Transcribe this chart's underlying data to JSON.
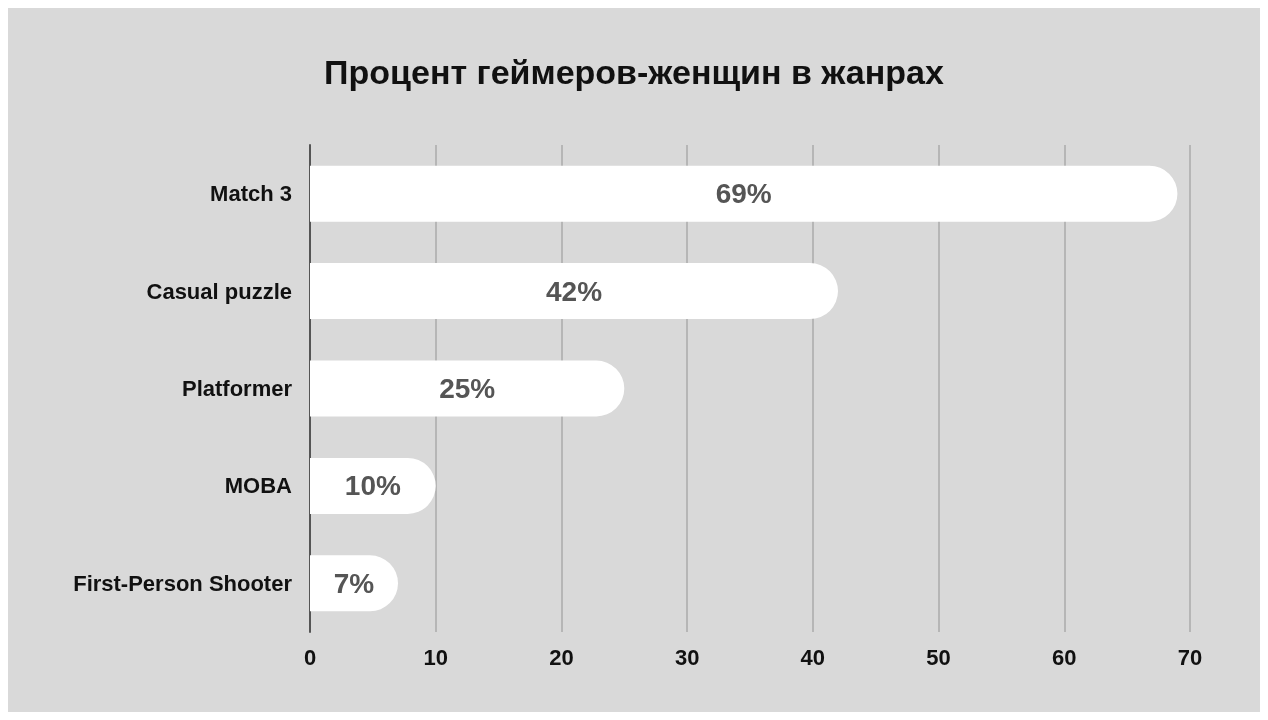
{
  "chart_data": {
    "type": "bar",
    "orientation": "horizontal",
    "title": "Процент геймеров-женщин в жанрах",
    "categories": [
      "Match 3",
      "Casual puzzle",
      "Platformer",
      "MOBA",
      "First-Person Shooter"
    ],
    "values": [
      69,
      42,
      25,
      10,
      7
    ],
    "value_labels": [
      "69%",
      "42%",
      "25%",
      "10%",
      "7%"
    ],
    "color": "#ffffff",
    "xlim": [
      0,
      70
    ],
    "xticks": [
      0,
      10,
      20,
      30,
      40,
      50,
      60,
      70
    ],
    "grid": "x"
  }
}
